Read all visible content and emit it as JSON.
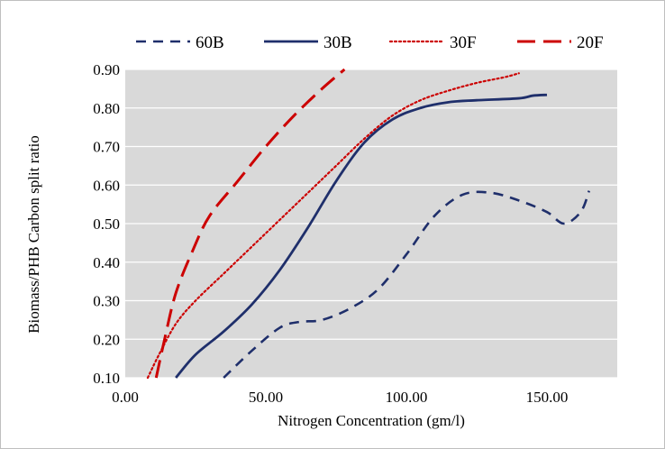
{
  "chart_data": {
    "type": "line",
    "xlabel": "Nitrogen Concentration  (gm/l)",
    "ylabel": "Biomass/PHB Carbon split ratio",
    "xlim": [
      0,
      175
    ],
    "ylim": [
      0.1,
      0.9
    ],
    "x_ticks": [
      0,
      50,
      100,
      150
    ],
    "x_tick_labels": [
      "0.00",
      "50.00",
      "100.00",
      "150.00"
    ],
    "y_ticks": [
      0.1,
      0.2,
      0.3,
      0.4,
      0.5,
      0.6,
      0.7,
      0.8,
      0.9
    ],
    "y_tick_labels": [
      "0.10",
      "0.20",
      "0.30",
      "0.40",
      "0.50",
      "0.60",
      "0.70",
      "0.80",
      "0.90"
    ],
    "grid": "horizontal",
    "plot_background": "#d9d9d9",
    "legend_position": "top",
    "series": [
      {
        "name": "60B",
        "color": "#1f2f6b",
        "dash": "dashed",
        "points": [
          [
            35,
            0.1
          ],
          [
            45,
            0.17
          ],
          [
            55,
            0.23
          ],
          [
            62,
            0.245
          ],
          [
            70,
            0.25
          ],
          [
            80,
            0.28
          ],
          [
            90,
            0.33
          ],
          [
            100,
            0.42
          ],
          [
            110,
            0.52
          ],
          [
            120,
            0.575
          ],
          [
            130,
            0.58
          ],
          [
            140,
            0.56
          ],
          [
            150,
            0.53
          ],
          [
            156,
            0.5
          ],
          [
            162,
            0.53
          ],
          [
            165,
            0.585
          ]
        ]
      },
      {
        "name": "30B",
        "color": "#1f2f6b",
        "dash": "solid",
        "points": [
          [
            18,
            0.1
          ],
          [
            25,
            0.16
          ],
          [
            35,
            0.22
          ],
          [
            45,
            0.29
          ],
          [
            55,
            0.38
          ],
          [
            65,
            0.49
          ],
          [
            75,
            0.61
          ],
          [
            85,
            0.71
          ],
          [
            95,
            0.77
          ],
          [
            105,
            0.8
          ],
          [
            115,
            0.815
          ],
          [
            125,
            0.82
          ],
          [
            140,
            0.825
          ],
          [
            145,
            0.832
          ],
          [
            150,
            0.834
          ]
        ]
      },
      {
        "name": "30F",
        "color": "#cc0000",
        "dash": "dotted",
        "points": [
          [
            8,
            0.1
          ],
          [
            12,
            0.16
          ],
          [
            18,
            0.24
          ],
          [
            25,
            0.3
          ],
          [
            35,
            0.37
          ],
          [
            45,
            0.44
          ],
          [
            55,
            0.51
          ],
          [
            65,
            0.58
          ],
          [
            75,
            0.65
          ],
          [
            85,
            0.72
          ],
          [
            95,
            0.78
          ],
          [
            105,
            0.82
          ],
          [
            115,
            0.845
          ],
          [
            125,
            0.865
          ],
          [
            135,
            0.88
          ],
          [
            140,
            0.89
          ]
        ]
      },
      {
        "name": "20F",
        "color": "#cc0000",
        "dash": "longdash",
        "points": [
          [
            11,
            0.1
          ],
          [
            14,
            0.2
          ],
          [
            18,
            0.32
          ],
          [
            24,
            0.43
          ],
          [
            30,
            0.52
          ],
          [
            40,
            0.61
          ],
          [
            50,
            0.7
          ],
          [
            60,
            0.78
          ],
          [
            70,
            0.85
          ],
          [
            78,
            0.9
          ]
        ]
      }
    ]
  }
}
